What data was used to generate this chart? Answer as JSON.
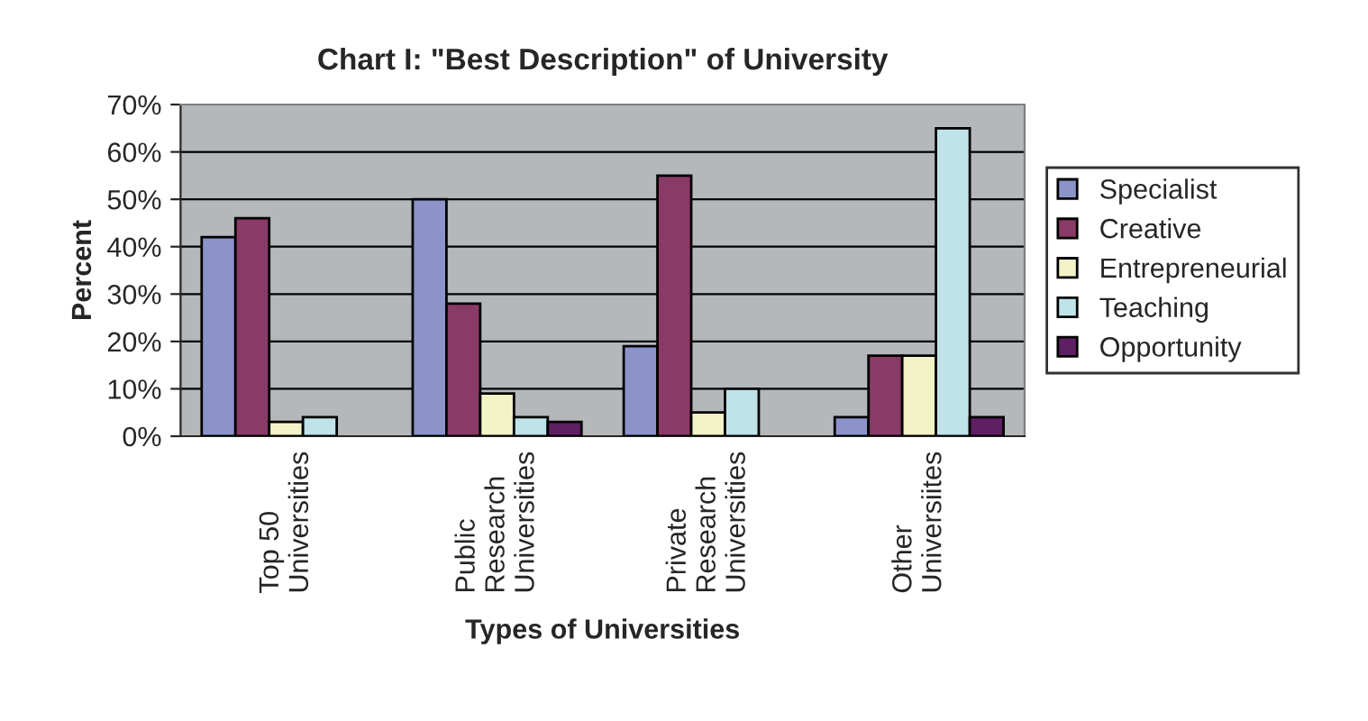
{
  "chart_data": {
    "type": "bar",
    "title": "Chart I: \"Best Description\" of University",
    "xlabel": "Types of Universities",
    "ylabel": "Percent",
    "categories": [
      "Top 50\nUniversities",
      "Public\nResearch\nUniversities",
      "Private\nResearch\nUniversities",
      "Other\nUniversiites"
    ],
    "series": [
      {
        "name": "Specialist",
        "color": "#8b93c8",
        "values": [
          42,
          50,
          19,
          4
        ]
      },
      {
        "name": "Creative",
        "color": "#8a3a66",
        "values": [
          46,
          28,
          55,
          17
        ]
      },
      {
        "name": "Entrepreneurial",
        "color": "#f3f3c8",
        "values": [
          3,
          9,
          5,
          17
        ]
      },
      {
        "name": "Teaching",
        "color": "#c0e3ea",
        "values": [
          4,
          4,
          10,
          65
        ]
      },
      {
        "name": "Opportunity",
        "color": "#5e1f63",
        "values": [
          null,
          3,
          null,
          4
        ]
      }
    ],
    "ylim": [
      0,
      70
    ],
    "yticks": [
      {
        "value": 0,
        "label": "0%"
      },
      {
        "value": 10,
        "label": "10%"
      },
      {
        "value": 20,
        "label": "20%"
      },
      {
        "value": 30,
        "label": "30%"
      },
      {
        "value": 40,
        "label": "40%"
      },
      {
        "value": 50,
        "label": "50%"
      },
      {
        "value": 60,
        "label": "60%"
      },
      {
        "value": 70,
        "label": "70%"
      }
    ],
    "grid": "y",
    "legend": "right"
  }
}
